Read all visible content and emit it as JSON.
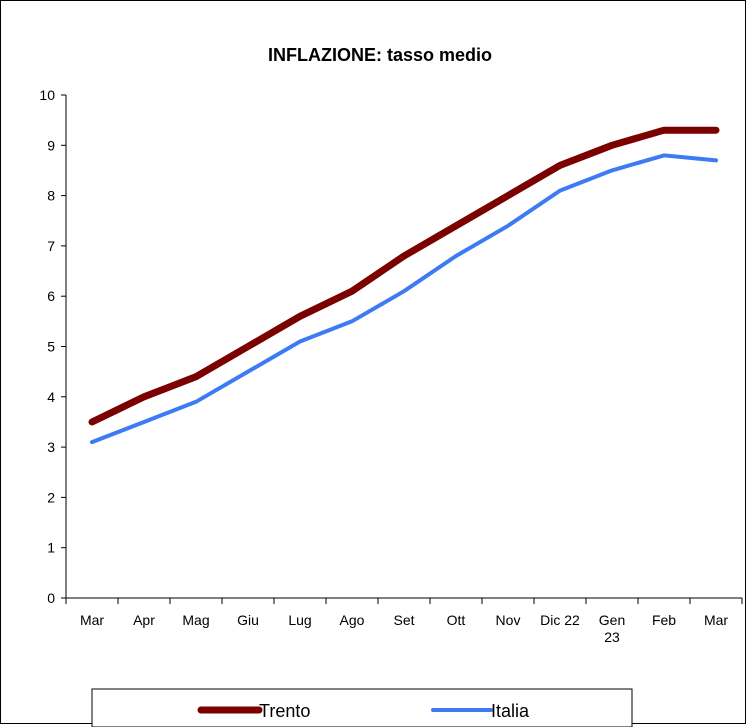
{
  "chart_data": {
    "type": "line",
    "title": "INFLAZIONE: tasso medio",
    "xlabel": "",
    "ylabel": "",
    "categories": [
      "Mar",
      "Apr",
      "Mag",
      "Giu",
      "Lug",
      "Ago",
      "Set",
      "Ott",
      "Nov",
      "Dic 22",
      "Gen 23",
      "Feb",
      "Mar"
    ],
    "ylim": [
      0,
      10
    ],
    "yticks": [
      "0",
      "1",
      "2",
      "3",
      "4",
      "5",
      "6",
      "7",
      "8",
      "9",
      "10"
    ],
    "grid": false,
    "legend_position": "bottom",
    "series": [
      {
        "name": "Trento",
        "color": "#7b0000",
        "values": [
          3.5,
          4.0,
          4.4,
          5.0,
          5.6,
          6.1,
          6.8,
          7.4,
          8.0,
          8.6,
          9.0,
          9.3,
          9.3
        ]
      },
      {
        "name": "Italia",
        "color": "#3d7bf5",
        "values": [
          3.1,
          3.5,
          3.9,
          4.5,
          5.1,
          5.5,
          6.1,
          6.8,
          7.4,
          8.1,
          8.5,
          8.8,
          8.7
        ]
      }
    ]
  }
}
